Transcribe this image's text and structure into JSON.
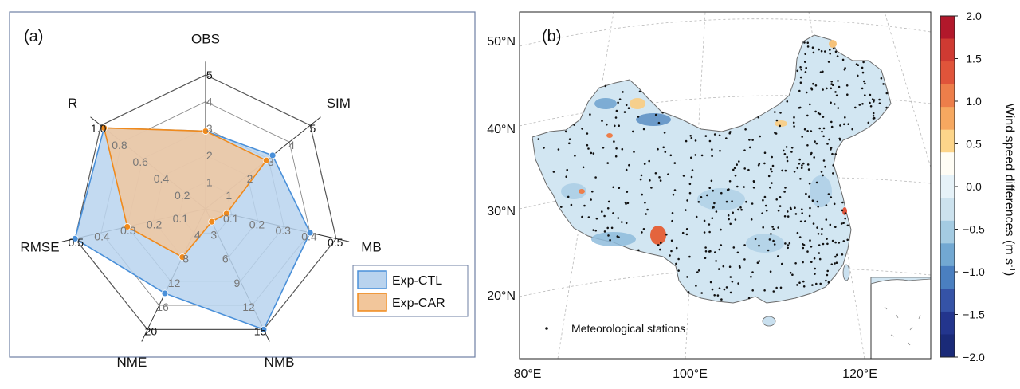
{
  "chart_data": [
    {
      "type": "radar",
      "panel_label": "(a)",
      "axes": [
        {
          "name": "OBS",
          "ticks": [
            "1",
            "2",
            "3",
            "4",
            "5"
          ],
          "range": [
            0,
            5
          ]
        },
        {
          "name": "SIM",
          "ticks": [
            "1",
            "2",
            "3",
            "4",
            "5"
          ],
          "range": [
            0,
            5
          ]
        },
        {
          "name": "MB",
          "ticks": [
            "0.1",
            "0.2",
            "0.3",
            "0.4",
            "0.5"
          ],
          "range": [
            0,
            0.5
          ]
        },
        {
          "name": "NMB",
          "ticks": [
            "3",
            "6",
            "9",
            "12",
            "15"
          ],
          "range": [
            0,
            15
          ]
        },
        {
          "name": "NME",
          "ticks": [
            "4",
            "8",
            "12",
            "16",
            "20"
          ],
          "range": [
            0,
            20
          ]
        },
        {
          "name": "RMSE",
          "ticks": [
            "0.1",
            "0.2",
            "0.3",
            "0.4",
            "0.5"
          ],
          "range": [
            0,
            0.5
          ]
        },
        {
          "name": "R",
          "ticks": [
            "0.2",
            "0.4",
            "0.6",
            "0.8",
            "1.0"
          ],
          "range": [
            0,
            1
          ]
        }
      ],
      "series": [
        {
          "name": "Exp-CTL",
          "color": "#4a90d9",
          "fill": "#b9d3ee",
          "values": [
            2.9,
            3.2,
            0.4,
            15,
            14,
            0.5,
            0.97
          ]
        },
        {
          "name": "Exp-CAR",
          "color": "#f08a1c",
          "fill": "#f2c69b",
          "values": [
            2.9,
            2.9,
            0.08,
            1.6,
            8,
            0.3,
            0.97
          ]
        }
      ],
      "legend_position": "bottom-right"
    },
    {
      "type": "map",
      "panel_label": "(b)",
      "lat_labels": [
        "50°N",
        "40°N",
        "30°N",
        "20°N"
      ],
      "lon_labels": [
        "80°E",
        "100°E",
        "120°E"
      ],
      "legend_marker_label": "Meteorological stations",
      "colorbar": {
        "label": "Wind speed differences (m s",
        "label_sup": "-1",
        "label_close": ")",
        "ticks": [
          "2.0",
          "1.5",
          "1.0",
          "0.5",
          "0.0",
          "−0.5",
          "−1.0",
          "−1.5",
          "−2.0"
        ],
        "colors": [
          "#b2182b",
          "#cf3a32",
          "#e0543a",
          "#ed7e4a",
          "#f6a860",
          "#fdd58a",
          "#fffdf5",
          "#e6f2f8",
          "#cce2ee",
          "#a4cbe2",
          "#72a8d2",
          "#4a7fc0",
          "#3553a6",
          "#23358d",
          "#1a2a78"
        ]
      }
    }
  ]
}
